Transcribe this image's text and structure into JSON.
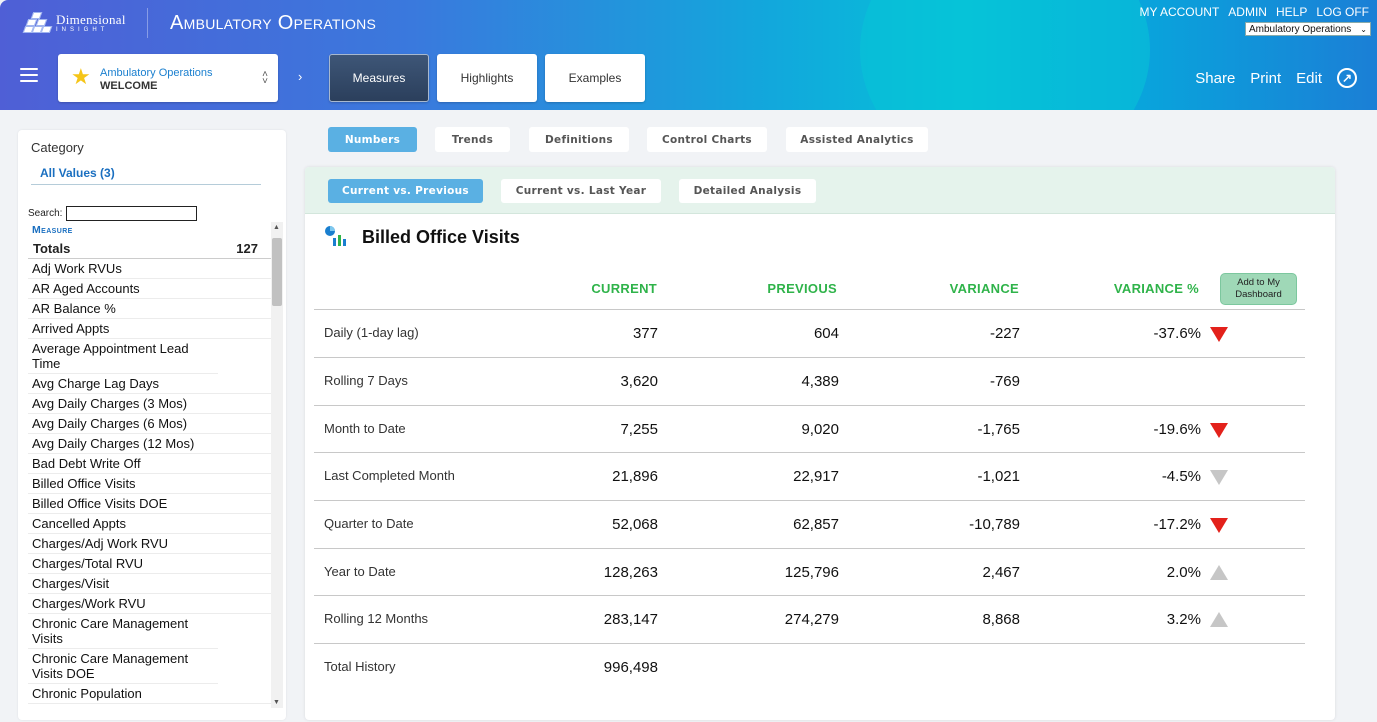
{
  "header": {
    "brand_line1": "Dimensional",
    "brand_line2": "INSIGHT",
    "app_title": "Ambulatory Operations",
    "top_links": [
      "MY ACCOUNT",
      "ADMIN",
      "HELP",
      "LOG OFF"
    ],
    "app_selector_value": "Ambulatory Operations",
    "dashboard_name": "Ambulatory Operations",
    "dashboard_page": "WELCOME",
    "nav_tabs": [
      "Measures",
      "Highlights",
      "Examples"
    ],
    "actions": [
      "Share",
      "Print",
      "Edit"
    ]
  },
  "colors": {
    "accent_blue": "#5ab0e3",
    "positive_green": "#2fb34a",
    "down_red": "#e3211b",
    "neutral_grey": "#c6c6c6"
  },
  "left_panel": {
    "category_label": "Category",
    "all_values": "All Values (3)",
    "search_label": "Search:",
    "list_header": "Measure",
    "totals_label": "Totals",
    "totals_count": "127",
    "items": [
      "Adj Work RVUs",
      "AR Aged Accounts",
      "AR Balance %",
      "Arrived Appts",
      "Average Appointment Lead Time",
      "Avg Charge Lag Days",
      "Avg Daily Charges (3 Mos)",
      "Avg Daily Charges (6 Mos)",
      "Avg Daily Charges (12 Mos)",
      "Bad Debt Write Off",
      "Billed Office Visits",
      "Billed Office Visits DOE",
      "Cancelled Appts",
      "Charges/Adj Work RVU",
      "Charges/Total RVU",
      "Charges/Visit",
      "Charges/Work RVU",
      "Chronic Care Management Visits",
      "Chronic Care Management Visits DOE",
      "Chronic Population"
    ]
  },
  "sub_tabs": [
    "Numbers",
    "Trends",
    "Definitions",
    "Control Charts",
    "Assisted Analytics"
  ],
  "view_tabs": [
    "Current vs. Previous",
    "Current vs. Last Year",
    "Detailed Analysis"
  ],
  "measure": {
    "title": "Billed Office Visits",
    "add_button": "Add to My Dashboard",
    "columns": [
      "CURRENT",
      "PREVIOUS",
      "VARIANCE",
      "VARIANCE %"
    ],
    "rows": [
      {
        "label": "Daily (1-day lag)",
        "current": "377",
        "previous": "604",
        "variance": "-227",
        "variance_pct": "-37.6%",
        "indicator": "down-red"
      },
      {
        "label": "Rolling 7 Days",
        "current": "3,620",
        "previous": "4,389",
        "variance": "-769",
        "variance_pct": "",
        "indicator": "none"
      },
      {
        "label": "Month to Date",
        "current": "7,255",
        "previous": "9,020",
        "variance": "-1,765",
        "variance_pct": "-19.6%",
        "indicator": "down-red"
      },
      {
        "label": "Last Completed Month",
        "current": "21,896",
        "previous": "22,917",
        "variance": "-1,021",
        "variance_pct": "-4.5%",
        "indicator": "down-grey"
      },
      {
        "label": "Quarter to Date",
        "current": "52,068",
        "previous": "62,857",
        "variance": "-10,789",
        "variance_pct": "-17.2%",
        "indicator": "down-red"
      },
      {
        "label": "Year to Date",
        "current": "128,263",
        "previous": "125,796",
        "variance": "2,467",
        "variance_pct": "2.0%",
        "indicator": "up-grey"
      },
      {
        "label": "Rolling 12 Months",
        "current": "283,147",
        "previous": "274,279",
        "variance": "8,868",
        "variance_pct": "3.2%",
        "indicator": "up-grey"
      },
      {
        "label": "Total History",
        "current": "996,498",
        "previous": "",
        "variance": "",
        "variance_pct": "",
        "indicator": "none"
      }
    ]
  }
}
